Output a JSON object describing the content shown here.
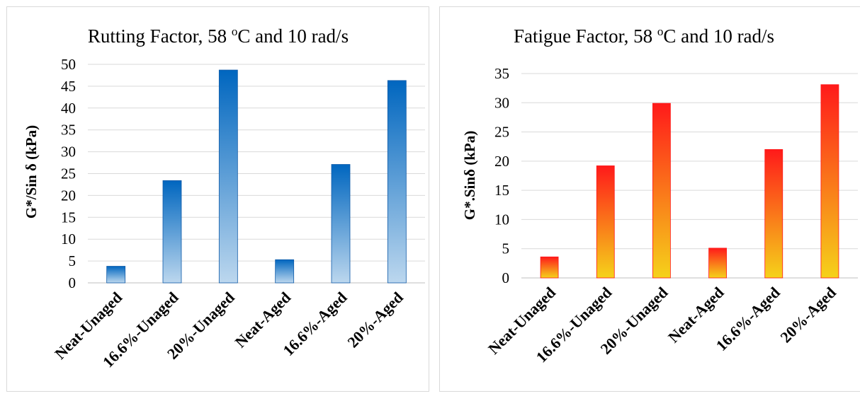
{
  "chart_data": [
    {
      "type": "bar",
      "title_main": "Rutting Factor, 58 ",
      "title_sup": "o",
      "title_tail": "C and 10 rad/s",
      "xlabel": "",
      "ylabel": "G*/Sin δ (kPa)",
      "categories": [
        "Neat-Unaged",
        "16.6%-Unaged",
        "20%-Unaged",
        "Neat-Aged",
        "16.6%-Aged",
        "20%-Aged"
      ],
      "values": [
        3.8,
        23.4,
        48.7,
        5.3,
        27.1,
        46.3
      ],
      "ylim": [
        0,
        50
      ],
      "yticks": [
        "0",
        "5",
        "10",
        "15",
        "20",
        "25",
        "30",
        "35",
        "40",
        "45",
        "50"
      ],
      "grid": true,
      "colors": {
        "top": "#0066bf",
        "bottom": "#bcd7ee",
        "edge": "#0f5aa8"
      }
    },
    {
      "type": "bar",
      "title_main": "Fatigue Factor, 58 ",
      "title_sup": "o",
      "title_tail": "C and 10 rad/s",
      "xlabel": "",
      "ylabel": "G*.Sinδ (kPa)",
      "categories": [
        "Neat-Unaged",
        "16.6%-Unaged",
        "20%-Unaged",
        "Neat-Aged",
        "16.6%-Aged",
        "20%-Aged"
      ],
      "values": [
        3.6,
        19.2,
        29.9,
        5.1,
        22.0,
        33.1
      ],
      "ylim": [
        0,
        35
      ],
      "yticks": [
        "0",
        "5",
        "10",
        "15",
        "20",
        "25",
        "30",
        "35"
      ],
      "grid": true,
      "colors": {
        "top": "#ff1a1a",
        "bottom": "#f5d21a",
        "edge": "#ff1a1a"
      }
    }
  ]
}
